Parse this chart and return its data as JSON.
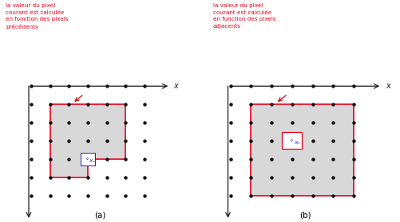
{
  "fig_width": 5.02,
  "fig_height": 2.79,
  "dpi": 100,
  "background_color": "#ffffff",
  "dot_color": "#111111",
  "dot_size": 2.2,
  "grid_rows": 7,
  "grid_cols": 7,
  "axis_color": "#1a1a1a",
  "red_color": "#e8001c",
  "gray_fill": "#d8d8d8",
  "blue_color": "#2222bb",
  "arrow_color": "#cc1111",
  "text_color_red": "#e8001c",
  "label_a": "(a)",
  "label_b": "(b)",
  "text_left": "la valeur du pixel\ncourant est calculée\nen fonction des pixels\nprécédents",
  "text_right": "la valeur du pixel\ncourant est calculée\nen fonction des pixels\nadjacents"
}
